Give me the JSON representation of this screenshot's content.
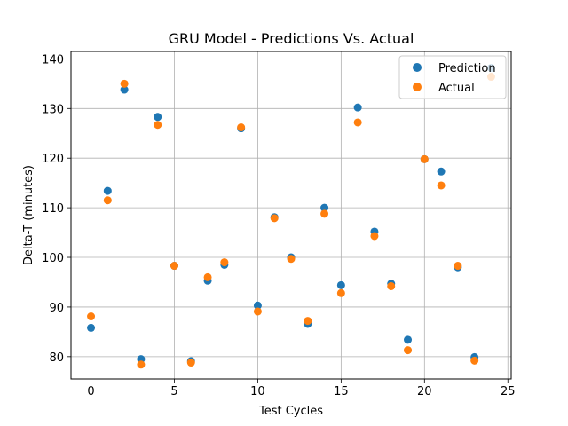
{
  "chart_data": {
    "type": "scatter",
    "title": "GRU Model - Predictions Vs. Actual",
    "xlabel": "Test Cycles",
    "ylabel": "Delta-T (minutes)",
    "xlim": [
      -1.2,
      25.2
    ],
    "ylim": [
      75.5,
      141.5
    ],
    "xticks": [
      0,
      5,
      10,
      15,
      20,
      25
    ],
    "yticks": [
      80,
      90,
      100,
      110,
      120,
      130,
      140
    ],
    "grid": true,
    "legend_position": "top-right",
    "x": [
      0,
      1,
      2,
      3,
      4,
      5,
      6,
      7,
      8,
      9,
      10,
      11,
      12,
      13,
      14,
      15,
      16,
      17,
      18,
      19,
      20,
      21,
      22,
      23,
      24
    ],
    "series": [
      {
        "name": "Prediction",
        "color": "#1f77b4",
        "values": [
          85.8,
          113.4,
          133.8,
          79.5,
          128.3,
          98.3,
          79.1,
          95.3,
          98.5,
          126.0,
          90.3,
          108.1,
          100.0,
          86.6,
          110.0,
          94.4,
          130.2,
          105.2,
          94.7,
          83.4,
          119.8,
          117.3,
          98.0,
          79.9,
          138.2
        ]
      },
      {
        "name": "Actual",
        "color": "#ff7f0e",
        "values": [
          88.1,
          111.5,
          135.0,
          78.4,
          126.7,
          98.3,
          78.8,
          96.0,
          99.0,
          126.2,
          89.1,
          107.9,
          99.7,
          87.2,
          108.8,
          92.8,
          127.2,
          104.3,
          94.2,
          81.3,
          119.8,
          114.5,
          98.3,
          79.2,
          136.4
        ]
      }
    ]
  }
}
